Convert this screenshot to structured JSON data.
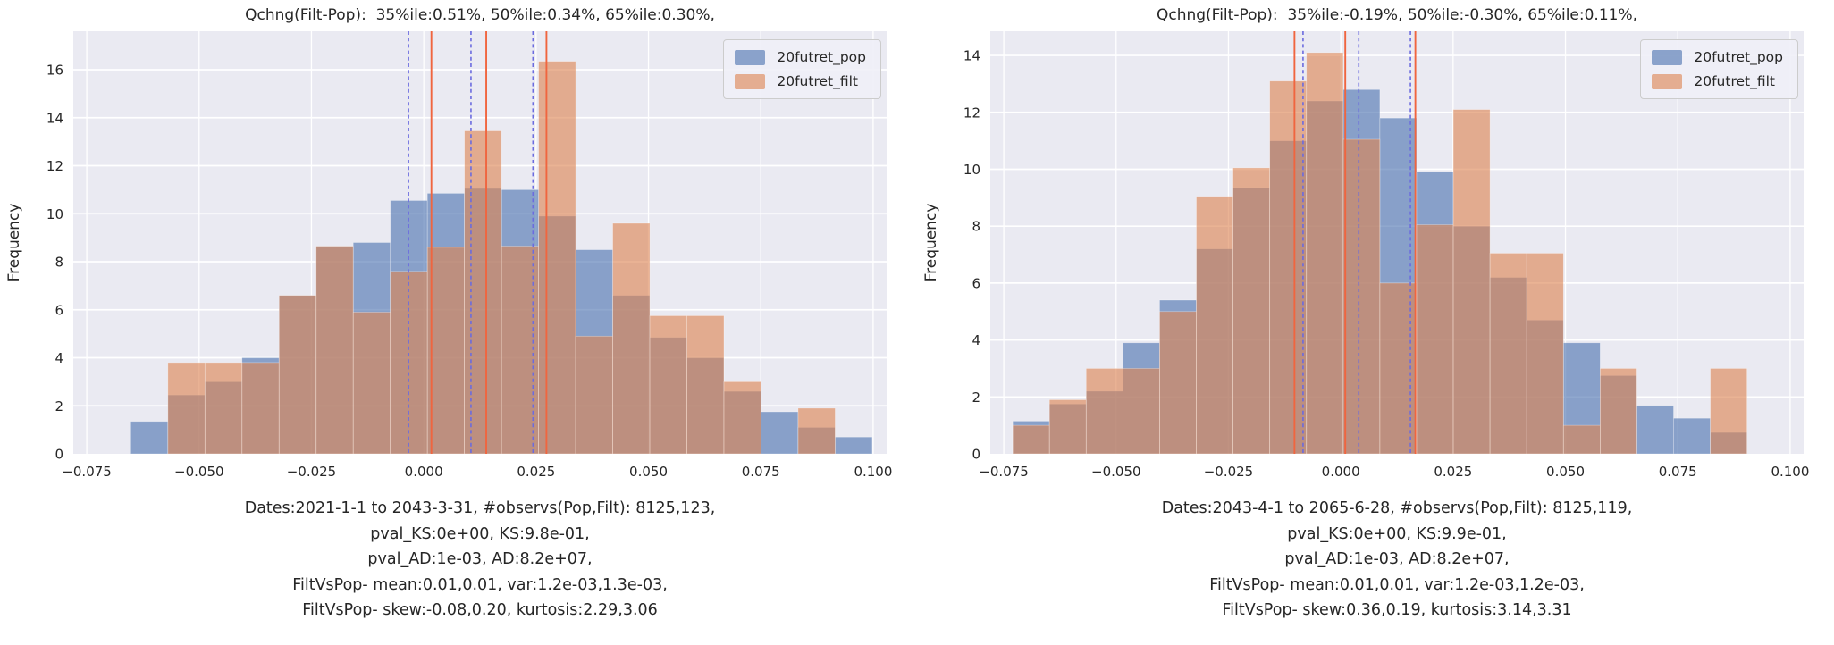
{
  "style": {
    "figure_bg": "#ffffff",
    "axes_bg": "#eaeaf2",
    "grid_color": "#ffffff",
    "text_color": "#262626",
    "pop_color": "#4c72b0",
    "filt_color": "#dd8452",
    "series_fills": [
      "rgba(76,114,176,0.62)",
      "rgba(221,132,82,0.62)"
    ],
    "vline_colors": {
      "pop": "#6b6bdf",
      "filt": "#f0653f"
    },
    "legend_bg": "rgba(240,240,247,0.9)",
    "legend_border": "#cccccc"
  },
  "chart_data": [
    {
      "type": "bar",
      "subtype": "overlaid-histogram",
      "title": "Qchng(Filt-Pop):  35%ile:0.51%, 50%ile:0.34%, 65%ile:0.30%,",
      "ylabel": "Frequency",
      "grid": true,
      "legend_position": "upper right",
      "xlim": [
        -0.078,
        0.103
      ],
      "ylim": [
        0,
        17.6
      ],
      "xticks": [
        {
          "value": -0.075,
          "label": "−0.075"
        },
        {
          "value": -0.05,
          "label": "−0.050"
        },
        {
          "value": -0.025,
          "label": "−0.025"
        },
        {
          "value": 0.0,
          "label": "0.000"
        },
        {
          "value": 0.025,
          "label": "0.025"
        },
        {
          "value": 0.05,
          "label": "0.050"
        },
        {
          "value": 0.075,
          "label": "0.075"
        },
        {
          "value": 0.1,
          "label": "0.100"
        }
      ],
      "yticks": [
        0,
        2,
        4,
        6,
        8,
        10,
        12,
        14,
        16
      ],
      "bins": {
        "start": -0.0652,
        "width": 0.00825,
        "count": 20
      },
      "series": [
        {
          "name": "20futret_pop",
          "values": [
            1.35,
            2.45,
            3.0,
            4.0,
            6.6,
            8.65,
            8.8,
            10.55,
            10.85,
            11.05,
            11.0,
            9.9,
            8.5,
            6.6,
            4.85,
            4.0,
            2.6,
            1.75,
            1.1,
            0.7
          ]
        },
        {
          "name": "20futret_filt",
          "values": [
            0,
            3.8,
            3.8,
            3.8,
            6.6,
            8.65,
            5.9,
            7.6,
            8.6,
            13.45,
            8.65,
            16.35,
            4.9,
            9.6,
            5.75,
            5.75,
            3.0,
            0,
            1.9,
            0
          ]
        }
      ],
      "vlines": [
        {
          "series": "filt",
          "style": "solid",
          "x": 0.0017
        },
        {
          "series": "filt",
          "style": "solid",
          "x": 0.0139
        },
        {
          "series": "filt",
          "style": "solid",
          "x": 0.0273
        },
        {
          "series": "pop",
          "style": "dashed",
          "x": -0.0034
        },
        {
          "series": "pop",
          "style": "dashed",
          "x": 0.0105
        },
        {
          "series": "pop",
          "style": "dashed",
          "x": 0.0243
        }
      ],
      "caption_lines": [
        "Dates:2021-1-1 to 2043-3-31, #observs(Pop,Filt): 8125,123,",
        "pval_KS:0e+00, KS:9.8e-01,",
        "pval_AD:1e-03, AD:8.2e+07,",
        "FiltVsPop- mean:0.01,0.01, var:1.2e-03,1.3e-03,",
        "FiltVsPop- skew:-0.08,0.20, kurtosis:2.29,3.06"
      ]
    },
    {
      "type": "bar",
      "subtype": "overlaid-histogram",
      "title": "Qchng(Filt-Pop):  35%ile:-0.19%, 50%ile:-0.30%, 65%ile:0.11%,",
      "ylabel": "Frequency",
      "grid": true,
      "legend_position": "upper right",
      "xlim": [
        -0.078,
        0.103
      ],
      "ylim": [
        0,
        14.85
      ],
      "xticks": [
        {
          "value": -0.075,
          "label": "−0.075"
        },
        {
          "value": -0.05,
          "label": "−0.050"
        },
        {
          "value": -0.025,
          "label": "−0.025"
        },
        {
          "value": 0.0,
          "label": "0.000"
        },
        {
          "value": 0.025,
          "label": "0.025"
        },
        {
          "value": 0.05,
          "label": "0.050"
        },
        {
          "value": 0.075,
          "label": "0.075"
        },
        {
          "value": 0.1,
          "label": "0.100"
        }
      ],
      "yticks": [
        0,
        2,
        4,
        6,
        8,
        10,
        12,
        14
      ],
      "bins": {
        "start": -0.073,
        "width": 0.00817,
        "count": 20
      },
      "series": [
        {
          "name": "20futret_pop",
          "values": [
            1.15,
            1.75,
            2.2,
            3.9,
            5.4,
            7.2,
            9.35,
            11.0,
            12.4,
            12.8,
            11.8,
            9.9,
            8.0,
            6.2,
            4.7,
            3.9,
            2.75,
            1.7,
            1.25,
            0.75
          ]
        },
        {
          "name": "20futret_filt",
          "values": [
            1.0,
            1.9,
            3.0,
            3.0,
            5.0,
            9.05,
            10.05,
            13.1,
            14.1,
            11.05,
            6.0,
            8.05,
            12.1,
            7.05,
            7.05,
            1.0,
            3.0,
            0,
            0,
            3.0
          ]
        }
      ],
      "vlines": [
        {
          "series": "filt",
          "style": "solid",
          "x": -0.0103
        },
        {
          "series": "filt",
          "style": "solid",
          "x": 0.001
        },
        {
          "series": "filt",
          "style": "solid",
          "x": 0.0166
        },
        {
          "series": "pop",
          "style": "dashed",
          "x": -0.0084
        },
        {
          "series": "pop",
          "style": "dashed",
          "x": 0.004
        },
        {
          "series": "pop",
          "style": "dashed",
          "x": 0.0155
        }
      ],
      "caption_lines": [
        "Dates:2043-4-1 to 2065-6-28, #observs(Pop,Filt): 8125,119,",
        "pval_KS:0e+00, KS:9.9e-01,",
        "pval_AD:1e-03, AD:8.2e+07,",
        "FiltVsPop- mean:0.01,0.01, var:1.2e-03,1.2e-03,",
        "FiltVsPop- skew:0.36,0.19, kurtosis:3.14,3.31"
      ]
    }
  ]
}
